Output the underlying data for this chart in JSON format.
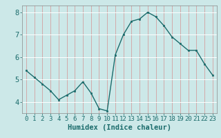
{
  "x": [
    0,
    1,
    2,
    3,
    4,
    5,
    6,
    7,
    8,
    9,
    10,
    11,
    12,
    13,
    14,
    15,
    16,
    17,
    18,
    19,
    20,
    21,
    22,
    23
  ],
  "y": [
    5.4,
    5.1,
    4.8,
    4.5,
    4.1,
    4.3,
    4.5,
    4.9,
    4.4,
    3.7,
    3.6,
    6.1,
    7.0,
    7.6,
    7.7,
    8.0,
    7.8,
    7.4,
    6.9,
    6.6,
    6.3,
    6.3,
    5.7,
    5.2
  ],
  "xlabel": "Humidex (Indice chaleur)",
  "ylim": [
    3.5,
    8.3
  ],
  "xlim": [
    -0.5,
    23.5
  ],
  "bg_color": "#cce8e8",
  "line_color": "#1a6b6b",
  "marker_color": "#1a6b6b",
  "hgrid_color": "#ffffff",
  "vgrid_color": "#d4a0a0",
  "yticks": [
    4,
    5,
    6,
    7,
    8
  ],
  "xticks": [
    0,
    1,
    2,
    3,
    4,
    5,
    6,
    7,
    8,
    9,
    10,
    11,
    12,
    13,
    14,
    15,
    16,
    17,
    18,
    19,
    20,
    21,
    22,
    23
  ],
  "tick_fontsize": 6.5,
  "xlabel_fontsize": 7.5,
  "ytick_fontsize": 7.5
}
